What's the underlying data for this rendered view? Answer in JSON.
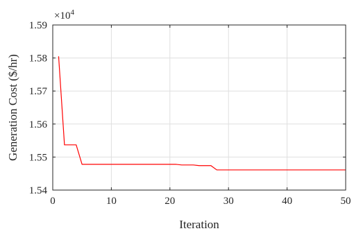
{
  "chart_data": {
    "type": "line",
    "xlabel": "Iteration",
    "ylabel": "Generation Cost ($/hr)",
    "exponent_base": "×10",
    "exponent_power": "4",
    "xlim": [
      0,
      50
    ],
    "ylim": [
      1.54,
      1.59
    ],
    "xticks": [
      0,
      10,
      20,
      30,
      40,
      50
    ],
    "xtick_labels": [
      "0",
      "10",
      "20",
      "30",
      "40",
      "50"
    ],
    "yticks": [
      1.54,
      1.55,
      1.56,
      1.57,
      1.58,
      1.59
    ],
    "ytick_labels": [
      "1.54",
      "1.55",
      "1.56",
      "1.57",
      "1.58",
      "1.59"
    ],
    "grid": true,
    "series": [
      {
        "color": "#ff0000",
        "x": [
          1,
          2,
          3,
          4,
          5,
          6,
          7,
          8,
          9,
          10,
          11,
          12,
          13,
          14,
          15,
          16,
          17,
          18,
          19,
          20,
          21,
          22,
          23,
          24,
          25,
          26,
          27,
          28,
          29,
          30,
          31,
          32,
          33,
          34,
          35,
          36,
          37,
          38,
          39,
          40,
          41,
          42,
          43,
          44,
          45,
          46,
          47,
          48,
          49,
          50
        ],
        "y": [
          1.5805,
          1.5537,
          1.5537,
          1.5537,
          1.5478,
          1.5478,
          1.5478,
          1.5478,
          1.5478,
          1.5478,
          1.5478,
          1.5478,
          1.5478,
          1.5478,
          1.5478,
          1.5478,
          1.5478,
          1.5478,
          1.5478,
          1.5478,
          1.5478,
          1.5476,
          1.5476,
          1.5476,
          1.5474,
          1.5474,
          1.5474,
          1.5461,
          1.5461,
          1.5461,
          1.5461,
          1.5461,
          1.5461,
          1.5461,
          1.5461,
          1.5461,
          1.5461,
          1.5461,
          1.5461,
          1.5461,
          1.5461,
          1.5461,
          1.5461,
          1.5461,
          1.5461,
          1.5461,
          1.5461,
          1.5461,
          1.5461,
          1.5461
        ]
      }
    ]
  }
}
